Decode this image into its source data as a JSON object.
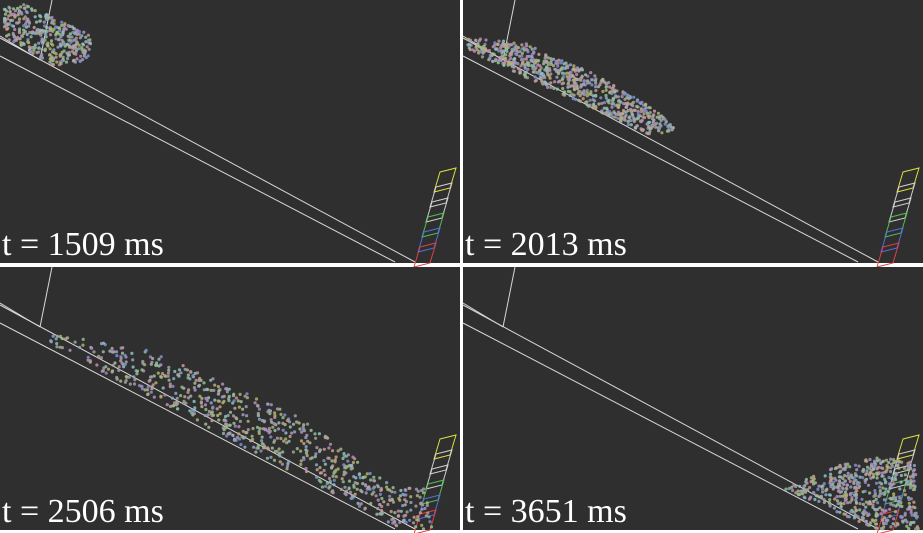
{
  "panels": [
    {
      "time_label": "t = 1509 ms"
    },
    {
      "time_label": "t = 2013 ms"
    },
    {
      "time_label": "t = 2506 ms"
    },
    {
      "time_label": "t = 3651 ms"
    }
  ]
}
